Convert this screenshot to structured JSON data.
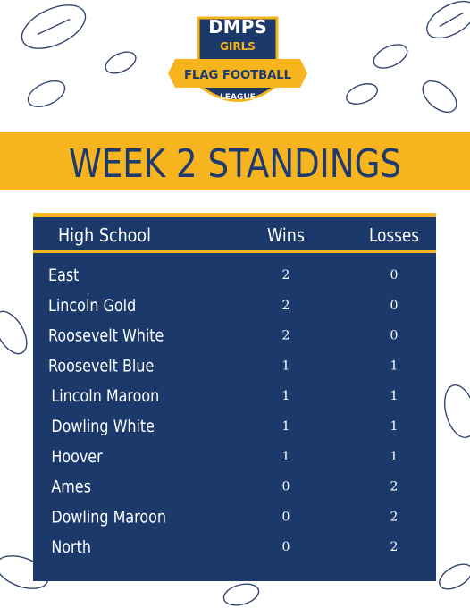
{
  "header": {
    "logo": {
      "line1": "DMPS",
      "line2": "GIRLS",
      "line3": "FLAG FOOTBALL",
      "line4": "LEAGUE"
    },
    "title": "WEEK 2 STANDINGS"
  },
  "table": {
    "columns": [
      "High School",
      "Wins",
      "Losses"
    ],
    "rows": [
      [
        "East",
        2,
        0
      ],
      [
        "Lincoln Gold",
        2,
        0
      ],
      [
        "Roosevelt White",
        2,
        0
      ],
      [
        "Roosevelt Blue",
        1,
        1
      ],
      [
        "Lincoln Maroon",
        1,
        1
      ],
      [
        "Dowling White",
        1,
        1
      ],
      [
        "Hoover",
        1,
        1
      ],
      [
        "Ames",
        0,
        2
      ],
      [
        "Dowling Maroon",
        0,
        2
      ],
      [
        "North",
        0,
        2
      ]
    ]
  }
}
